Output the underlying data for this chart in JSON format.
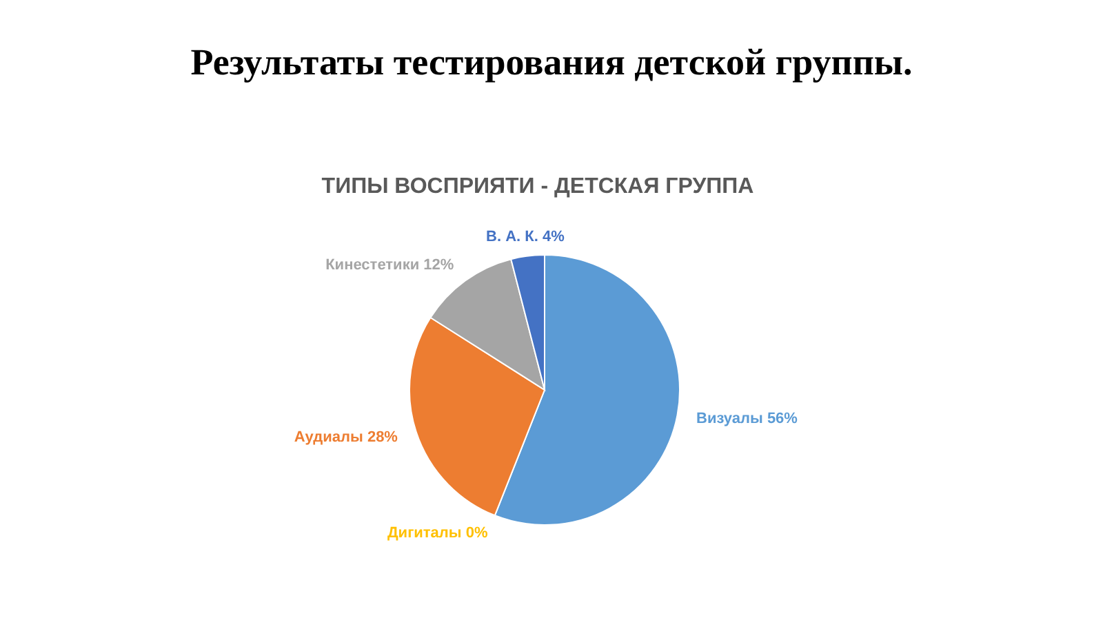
{
  "chart_data": {
    "type": "pie",
    "title": "Результаты тестирования детской группы.",
    "subtitle": "ТИПЫ ВОСПРИЯТИ - ДЕТСКАЯ ГРУППА",
    "categories": [
      "Визуалы",
      "Дигиталы",
      "Аудиалы",
      "Кинестетики",
      "В. А. К."
    ],
    "values": [
      56,
      0,
      28,
      12,
      4
    ],
    "value_labels": [
      "56%",
      "0%",
      "28%",
      "12%",
      "4%"
    ],
    "colors": [
      "#5b9bd5",
      "#ffc000",
      "#ed7d31",
      "#a5a5a5",
      "#4472c4"
    ]
  }
}
